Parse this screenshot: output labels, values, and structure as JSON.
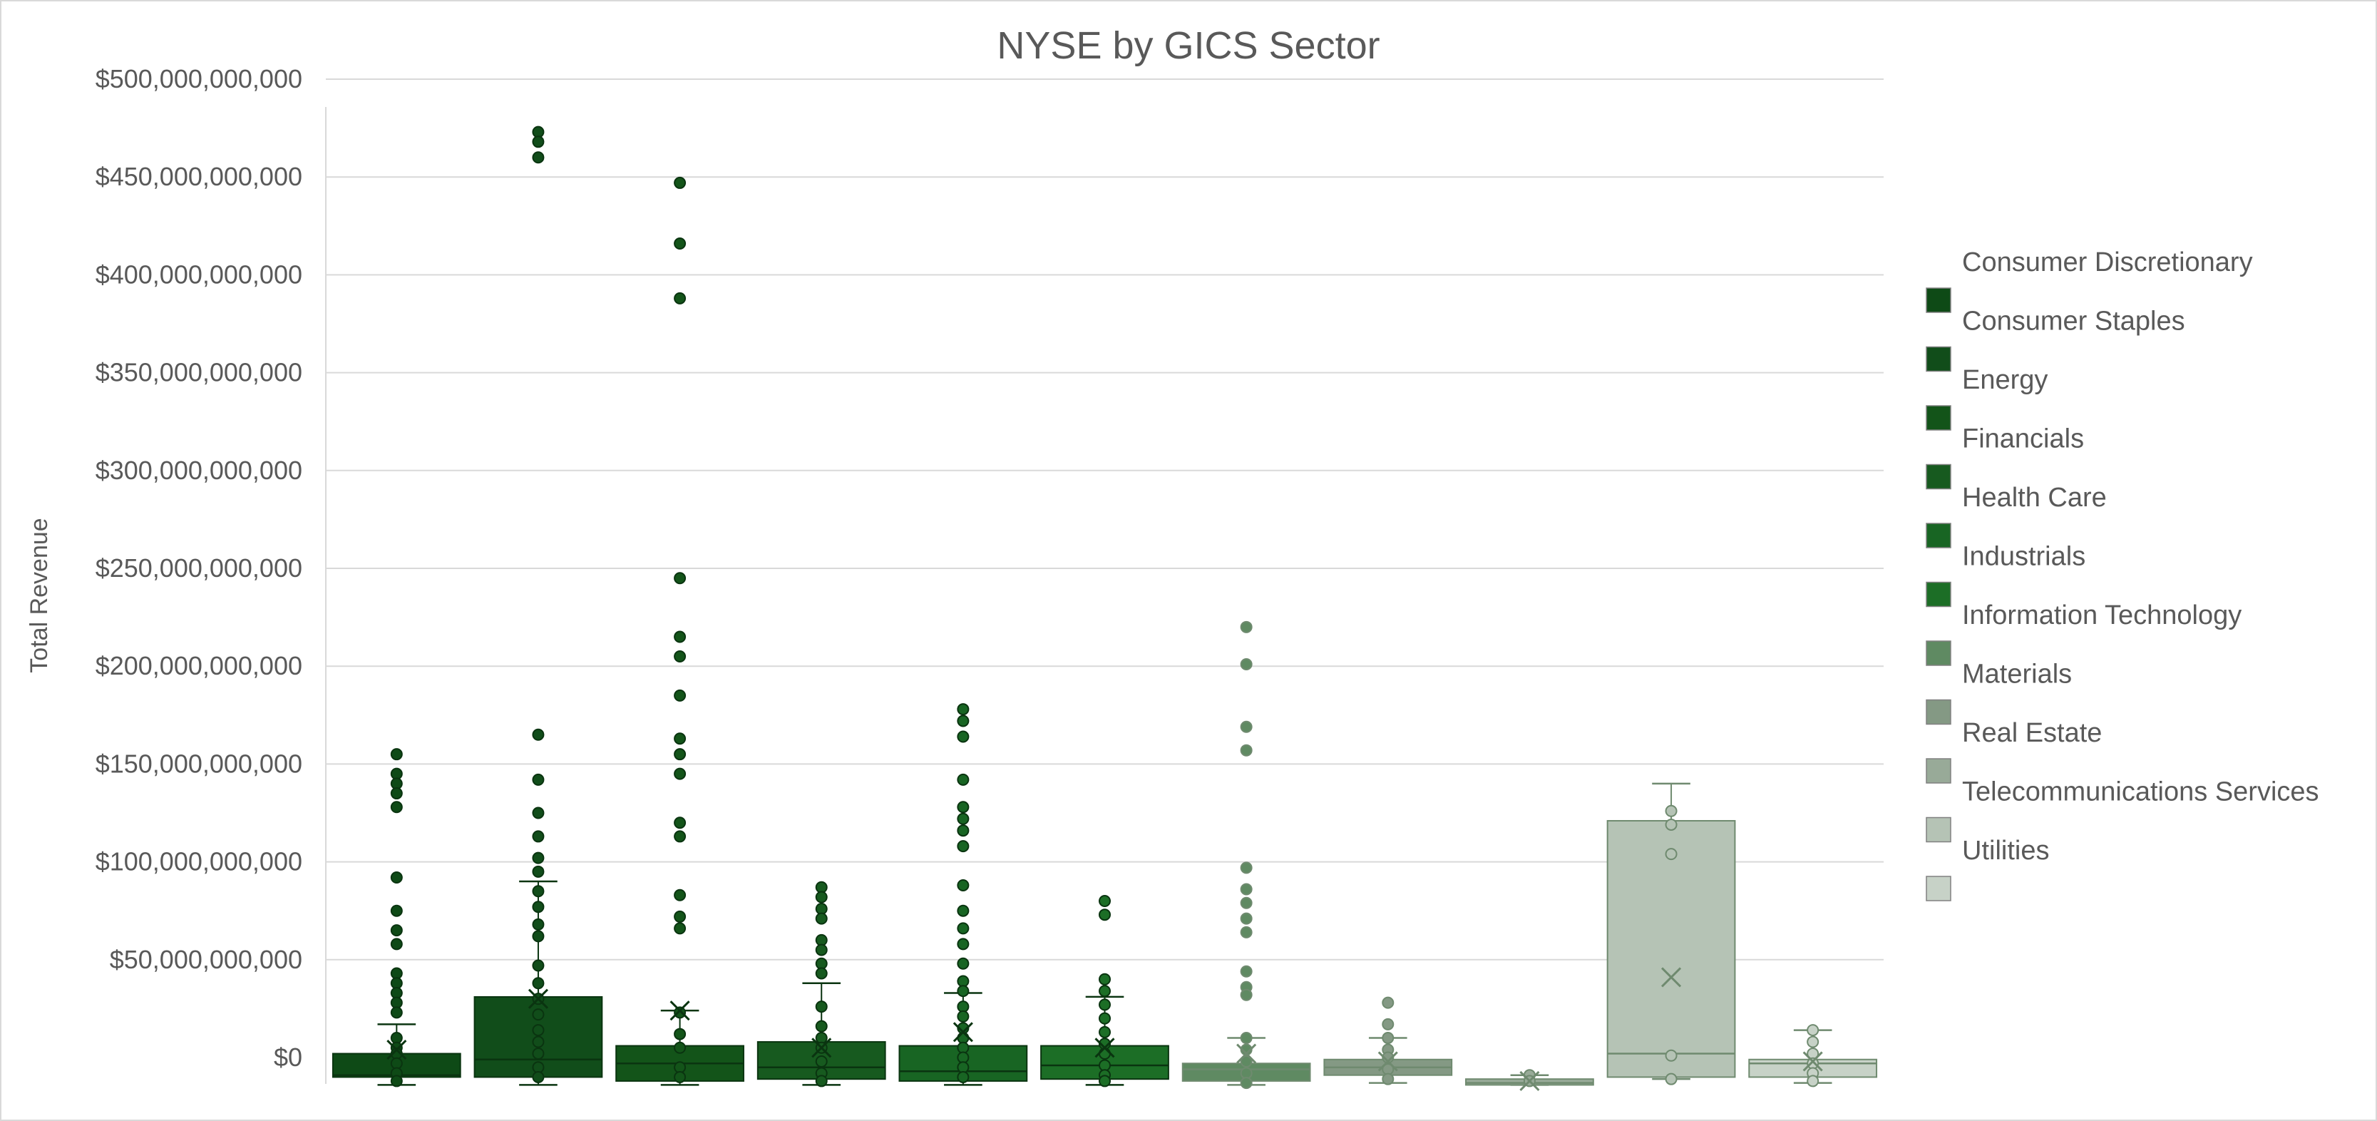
{
  "chart_data": {
    "type": "box",
    "title": "NYSE by GICS Sector",
    "ylabel": "Total Revenue",
    "xlabel": "",
    "ylim": [
      -15000000000,
      490000000000
    ],
    "yticks": [
      {
        "value": 0,
        "label": "$0"
      },
      {
        "value": 50000000000,
        "label": "$50,000,000,000"
      },
      {
        "value": 100000000000,
        "label": "$100,000,000,000"
      },
      {
        "value": 150000000000,
        "label": "$150,000,000,000"
      },
      {
        "value": 200000000000,
        "label": "$200,000,000,000"
      },
      {
        "value": 250000000000,
        "label": "$250,000,000,000"
      },
      {
        "value": 300000000000,
        "label": "$300,000,000,000"
      },
      {
        "value": 350000000000,
        "label": "$350,000,000,000"
      },
      {
        "value": 400000000000,
        "label": "$400,000,000,000"
      },
      {
        "value": 450000000000,
        "label": "$450,000,000,000"
      },
      {
        "value": 500000000000,
        "label": "$500,000,000,000"
      }
    ],
    "grid": true,
    "legend_position": "right",
    "series": [
      {
        "name": "Consumer Discretionary",
        "color": "#0e4a16",
        "min": -14000000000,
        "q1": -10000000000,
        "median": -9000000000,
        "q3": 2000000000,
        "max": 17000000000,
        "mean": 4000000000,
        "outliers": [
          155000000000,
          145000000000,
          140000000000,
          135000000000,
          128000000000,
          92000000000,
          75000000000,
          65000000000,
          58000000000,
          43000000000,
          38000000000,
          33000000000,
          28000000000,
          23000000000,
          10000000000,
          5000000000,
          2000000000,
          -3000000000,
          -8000000000,
          -12000000000
        ]
      },
      {
        "name": "Consumer Staples",
        "color": "#114d1a",
        "min": -14000000000,
        "q1": -10000000000,
        "median": -1000000000,
        "q3": 31000000000,
        "max": 90000000000,
        "mean": 30000000000,
        "outliers": [
          473000000000,
          468000000000,
          460000000000,
          165000000000,
          142000000000,
          125000000000,
          113000000000,
          102000000000,
          95000000000,
          85000000000,
          77000000000,
          68000000000,
          62000000000,
          47000000000,
          38000000000,
          30000000000,
          22000000000,
          14000000000,
          8000000000,
          2000000000,
          -5000000000,
          -10000000000
        ]
      },
      {
        "name": "Energy",
        "color": "#135419",
        "min": -14000000000,
        "q1": -12000000000,
        "median": -3000000000,
        "q3": 6000000000,
        "max": 24000000000,
        "mean": 24000000000,
        "outliers": [
          447000000000,
          416000000000,
          388000000000,
          245000000000,
          215000000000,
          205000000000,
          185000000000,
          163000000000,
          155000000000,
          145000000000,
          120000000000,
          113000000000,
          83000000000,
          72000000000,
          66000000000,
          23000000000,
          12000000000,
          5000000000,
          -5000000000,
          -10000000000
        ]
      },
      {
        "name": "Financials",
        "color": "#175a1f",
        "min": -14000000000,
        "q1": -11000000000,
        "median": -5000000000,
        "q3": 8000000000,
        "max": 38000000000,
        "mean": 5000000000,
        "outliers": [
          87000000000,
          82000000000,
          76000000000,
          71000000000,
          60000000000,
          55000000000,
          48000000000,
          43000000000,
          26000000000,
          16000000000,
          10000000000,
          5000000000,
          -2000000000,
          -8000000000,
          -12000000000
        ]
      },
      {
        "name": "Health Care",
        "color": "#186523",
        "min": -14000000000,
        "q1": -12000000000,
        "median": -7000000000,
        "q3": 6000000000,
        "max": 33000000000,
        "mean": 13000000000,
        "outliers": [
          178000000000,
          172000000000,
          164000000000,
          142000000000,
          128000000000,
          122000000000,
          116000000000,
          108000000000,
          88000000000,
          75000000000,
          66000000000,
          58000000000,
          48000000000,
          39000000000,
          34000000000,
          26000000000,
          21000000000,
          15000000000,
          10000000000,
          5000000000,
          0,
          -5000000000,
          -10000000000
        ]
      },
      {
        "name": "Industrials",
        "color": "#1c6e26",
        "min": -14000000000,
        "q1": -11000000000,
        "median": -4000000000,
        "q3": 6000000000,
        "max": 31000000000,
        "mean": 5000000000,
        "outliers": [
          80000000000,
          73000000000,
          40000000000,
          34000000000,
          27000000000,
          20000000000,
          13000000000,
          7000000000,
          2000000000,
          -4000000000,
          -9000000000,
          -12000000000
        ]
      },
      {
        "name": "Information Technology",
        "color": "#5f8a62",
        "min": -14000000000,
        "q1": -12000000000,
        "median": -6000000000,
        "q3": -3000000000,
        "max": 10000000000,
        "mean": 2000000000,
        "outliers": [
          220000000000,
          201000000000,
          169000000000,
          157000000000,
          97000000000,
          86000000000,
          79000000000,
          71000000000,
          64000000000,
          44000000000,
          36000000000,
          32000000000,
          10000000000,
          4000000000,
          -2000000000,
          -8000000000,
          -13000000000
        ]
      },
      {
        "name": "Materials",
        "color": "#849984",
        "min": -13000000000,
        "q1": -9000000000,
        "median": -5000000000,
        "q3": -1000000000,
        "max": 10000000000,
        "mean": -2000000000,
        "outliers": [
          28000000000,
          17000000000,
          10000000000,
          4000000000,
          0,
          -6000000000,
          -11000000000
        ]
      },
      {
        "name": "Real Estate",
        "color": "#98aa98",
        "min": -14000000000,
        "q1": -14000000000,
        "median": -13000000000,
        "q3": -11000000000,
        "max": -9000000000,
        "mean": -12000000000,
        "outliers": [
          -9000000000,
          -12000000000
        ]
      },
      {
        "name": "Telecommunications Services",
        "color": "#b5c3b5",
        "min": -11000000000,
        "q1": -10000000000,
        "median": 2000000000,
        "q3": 121000000000,
        "max": 140000000000,
        "mean": 41000000000,
        "outliers": [
          126000000000,
          119000000000,
          104000000000,
          1000000000,
          -11000000000
        ]
      },
      {
        "name": "Utilities",
        "color": "#c7d2c7",
        "min": -13000000000,
        "q1": -10000000000,
        "median": -3000000000,
        "q3": -1000000000,
        "max": 14000000000,
        "mean": -2000000000,
        "outliers": [
          14000000000,
          8000000000,
          2000000000,
          -3000000000,
          -8000000000,
          -12000000000
        ]
      }
    ]
  }
}
